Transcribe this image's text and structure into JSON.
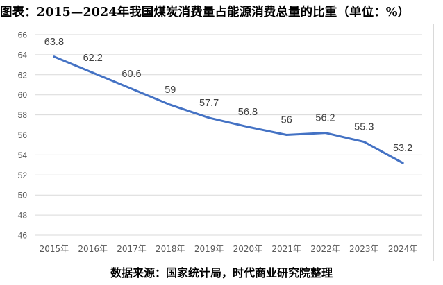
{
  "figure": {
    "title": "图表：2015—2024年我国煤炭消费量占能源消费总量的比重（单位：%）",
    "source": "数据来源：国家统计局，时代商业研究院整理"
  },
  "colors": {
    "line": "#4472c4",
    "grid": "#d9d9d9",
    "tick_text": "#595959",
    "label_text": "#404040"
  },
  "chart_data": {
    "type": "line",
    "title": "图表：2015—2024年我国煤炭消费量占能源消费总量的比重（单位：%）",
    "xlabel": "",
    "ylabel": "",
    "categories": [
      "2015年",
      "2016年",
      "2017年",
      "2018年",
      "2019年",
      "2020年",
      "2021年",
      "2022年",
      "2023年",
      "2024年"
    ],
    "series": [
      {
        "values": [
          63.8,
          62.2,
          60.6,
          59,
          57.7,
          56.8,
          56,
          56.2,
          55.3,
          53.2
        ]
      }
    ],
    "data_labels": [
      "63.8",
      "62.2",
      "60.6",
      "59",
      "57.7",
      "56.8",
      "56",
      "56.2",
      "55.3",
      "53.2"
    ],
    "ylim": [
      46,
      66
    ],
    "yticks": [
      46,
      48,
      50,
      52,
      54,
      56,
      58,
      60,
      62,
      64,
      66
    ],
    "grid": true,
    "legend": "none"
  }
}
